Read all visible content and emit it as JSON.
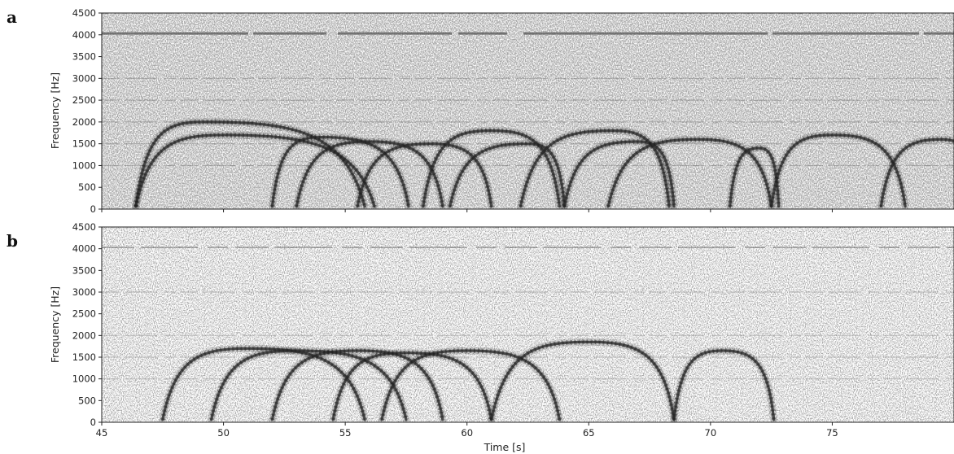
{
  "figure": {
    "panels": [
      "a",
      "b"
    ],
    "colors": {
      "background": "#ffffff",
      "ink": "#222222",
      "noise": "#8a8a8a",
      "signal": "#2a2a2a"
    }
  },
  "chart_data": [
    {
      "type": "heatmap",
      "panel": "a",
      "title": "",
      "xlabel": "",
      "ylabel": "Frequency [Hz]",
      "xlim": [
        45,
        80
      ],
      "ylim": [
        0,
        4500
      ],
      "xticks": [
        45,
        50,
        55,
        60,
        65,
        70,
        75
      ],
      "yticks": [
        0,
        500,
        1000,
        1500,
        2000,
        2500,
        3000,
        3500,
        4000,
        4500
      ],
      "xtick_labels_visible": false,
      "noise_level": "high",
      "constant_tone_hz": 4030,
      "harmonic_lines_hz": [
        1000,
        1500,
        2000,
        2500,
        3000
      ],
      "arcs": [
        {
          "t_start": 46.4,
          "t_peak": 49.2,
          "t_end": 55.8,
          "f_peak": 2000
        },
        {
          "t_start": 46.4,
          "t_peak": 50.0,
          "t_end": 56.2,
          "f_peak": 1700
        },
        {
          "t_start": 52.0,
          "t_peak": 54.0,
          "t_end": 57.6,
          "f_peak": 1650
        },
        {
          "t_start": 53.0,
          "t_peak": 56.0,
          "t_end": 59.0,
          "f_peak": 1550
        },
        {
          "t_start": 55.5,
          "t_peak": 58.5,
          "t_end": 61.0,
          "f_peak": 1500
        },
        {
          "t_start": 58.2,
          "t_peak": 61.0,
          "t_end": 63.8,
          "f_peak": 1800
        },
        {
          "t_start": 59.3,
          "t_peak": 62.5,
          "t_end": 64.0,
          "f_peak": 1500
        },
        {
          "t_start": 62.2,
          "t_peak": 66.0,
          "t_end": 68.3,
          "f_peak": 1800
        },
        {
          "t_start": 64.0,
          "t_peak": 67.0,
          "t_end": 68.5,
          "f_peak": 1550
        },
        {
          "t_start": 65.8,
          "t_peak": 69.5,
          "t_end": 72.5,
          "f_peak": 1600
        },
        {
          "t_start": 70.8,
          "t_peak": 72.0,
          "t_end": 72.8,
          "f_peak": 1400
        },
        {
          "t_start": 72.5,
          "t_peak": 75.0,
          "t_end": 78.0,
          "f_peak": 1700
        },
        {
          "t_start": 77.0,
          "t_peak": 79.5,
          "t_end": 81.0,
          "f_peak": 1600
        }
      ]
    },
    {
      "type": "heatmap",
      "panel": "b",
      "title": "",
      "xlabel": "Time [s]",
      "ylabel": "Frequency [Hz]",
      "xlim": [
        45,
        80
      ],
      "ylim": [
        0,
        4500
      ],
      "xticks": [
        45,
        50,
        55,
        60,
        65,
        70,
        75
      ],
      "yticks": [
        0,
        500,
        1000,
        1500,
        2000,
        2500,
        3000,
        3500,
        4000,
        4500
      ],
      "xtick_labels_visible": true,
      "noise_level": "low",
      "constant_tone_hz": 4030,
      "harmonic_lines_hz": [
        1000,
        1500,
        2000,
        3000
      ],
      "arcs": [
        {
          "t_start": 47.5,
          "t_peak": 51.0,
          "t_end": 55.8,
          "f_peak": 1700
        },
        {
          "t_start": 49.5,
          "t_peak": 53.0,
          "t_end": 57.5,
          "f_peak": 1650
        },
        {
          "t_start": 52.0,
          "t_peak": 55.5,
          "t_end": 59.0,
          "f_peak": 1650
        },
        {
          "t_start": 54.5,
          "t_peak": 57.5,
          "t_end": 61.0,
          "f_peak": 1600
        },
        {
          "t_start": 56.5,
          "t_peak": 60.0,
          "t_end": 63.8,
          "f_peak": 1650
        },
        {
          "t_start": 61.0,
          "t_peak": 65.0,
          "t_end": 68.5,
          "f_peak": 1850
        },
        {
          "t_start": 68.5,
          "t_peak": 70.5,
          "t_end": 72.6,
          "f_peak": 1650
        }
      ]
    }
  ]
}
